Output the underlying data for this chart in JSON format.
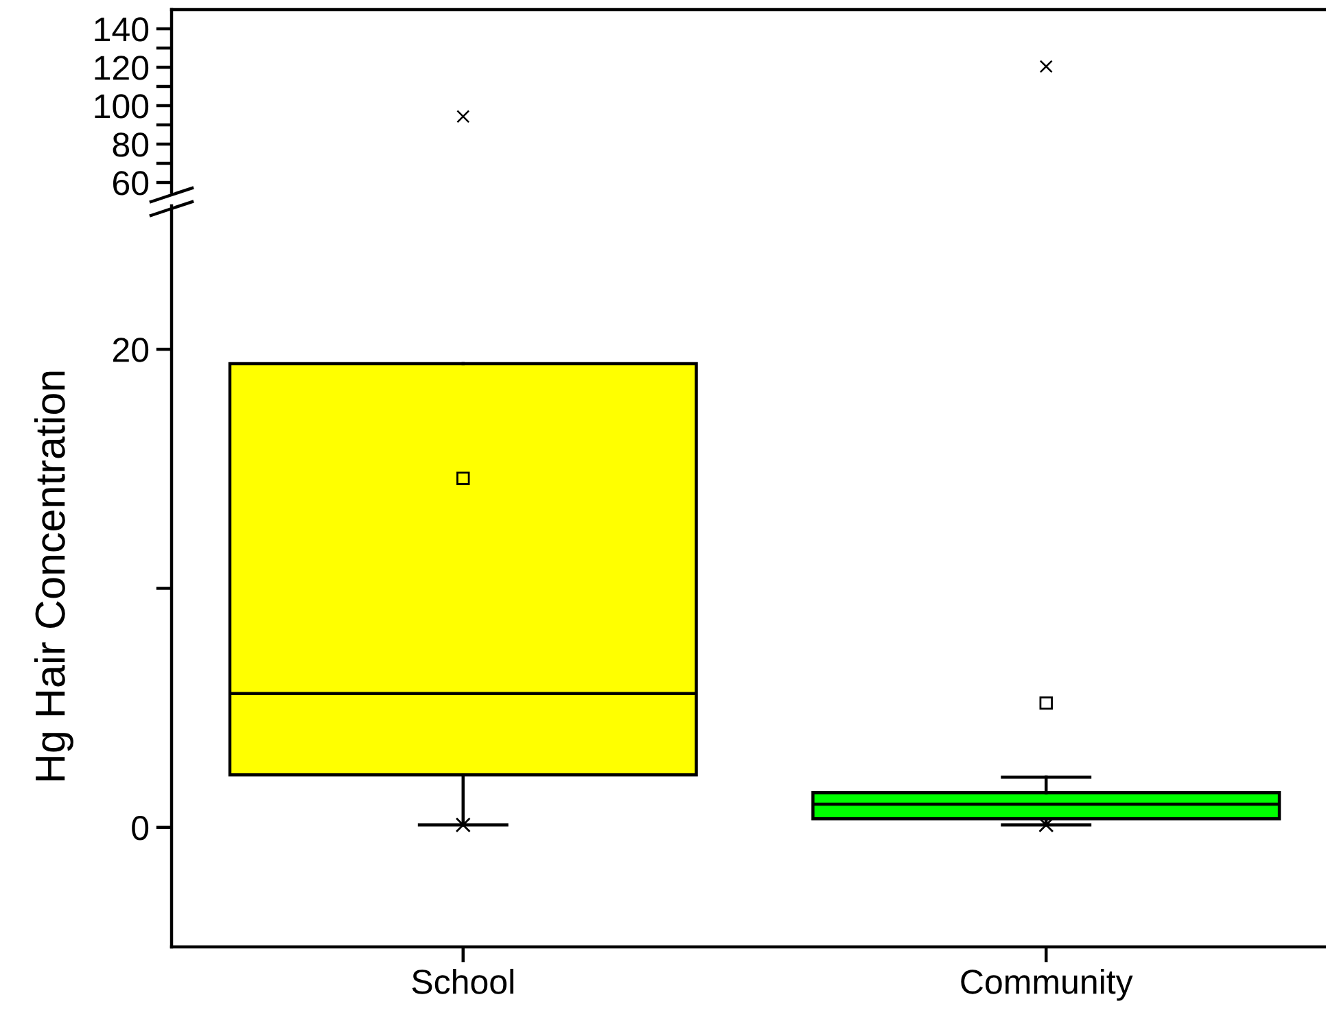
{
  "chart_data": [
    {
      "type": "scatter",
      "categories": [
        null,
        null
      ],
      "values": [
        94.4,
        120.4
      ],
      "marker": "cross",
      "color": "#000000",
      "ylim": [
        55,
        150
      ],
      "yticks": [
        60,
        {
          "value": 70,
          "label": null
        },
        80,
        {
          "value": 90,
          "label": null
        },
        100,
        {
          "value": 110,
          "label": null
        },
        120,
        {
          "value": 130,
          "label": null
        },
        140
      ],
      "tick_labels": "y"
    },
    {
      "type": "box",
      "categories": [
        "School",
        "Community"
      ],
      "ylabel": "Hg Hair Concentration",
      "colors": [
        "#ffff00",
        "#00ff00"
      ],
      "boxes": [
        {
          "low": 0.1,
          "q1": 2.2,
          "median": 5.6,
          "q3": 19.4,
          "high": 19.4,
          "mean": 14.6,
          "outliers": [
            0.1
          ]
        },
        {
          "low": 0.1,
          "q1": 0.36,
          "median": 0.97,
          "q3": 1.45,
          "high": 2.1,
          "mean": 5.2,
          "outliers": [
            0.1
          ]
        }
      ],
      "ylim": [
        -5,
        26
      ],
      "yticks": [
        0,
        {
          "value": 10,
          "label": null
        },
        20
      ]
    }
  ]
}
